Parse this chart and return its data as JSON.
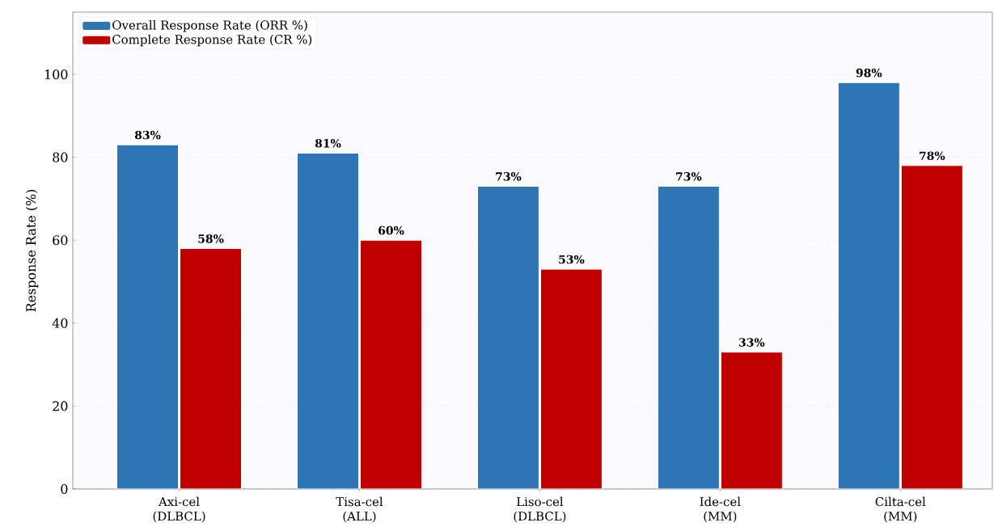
{
  "chart_data": {
    "type": "bar",
    "ylabel": "Response Rate (%)",
    "categories": [
      "Axi-cel (DLBCL)",
      "Tisa-cel (ALL)",
      "Liso-cel (DLBCL)",
      "Ide-cel (MM)",
      "Cilta-cel (MM)"
    ],
    "series": [
      {
        "name": "Overall Response Rate (ORR %)",
        "color": "#2e75b6",
        "values": [
          83,
          81,
          73,
          73,
          98
        ],
        "value_labels": [
          "83%",
          "81%",
          "73%",
          "73%",
          "98%"
        ]
      },
      {
        "name": "Complete Response Rate (CR %)",
        "color": "#c00000",
        "values": [
          58,
          60,
          53,
          33,
          78
        ],
        "value_labels": [
          "58%",
          "60%",
          "53%",
          "33%",
          "78%"
        ]
      }
    ],
    "ylim": [
      0,
      115
    ],
    "yticks": [
      0,
      20,
      40,
      60,
      80,
      100
    ],
    "grid": "y",
    "legend": "top left"
  }
}
